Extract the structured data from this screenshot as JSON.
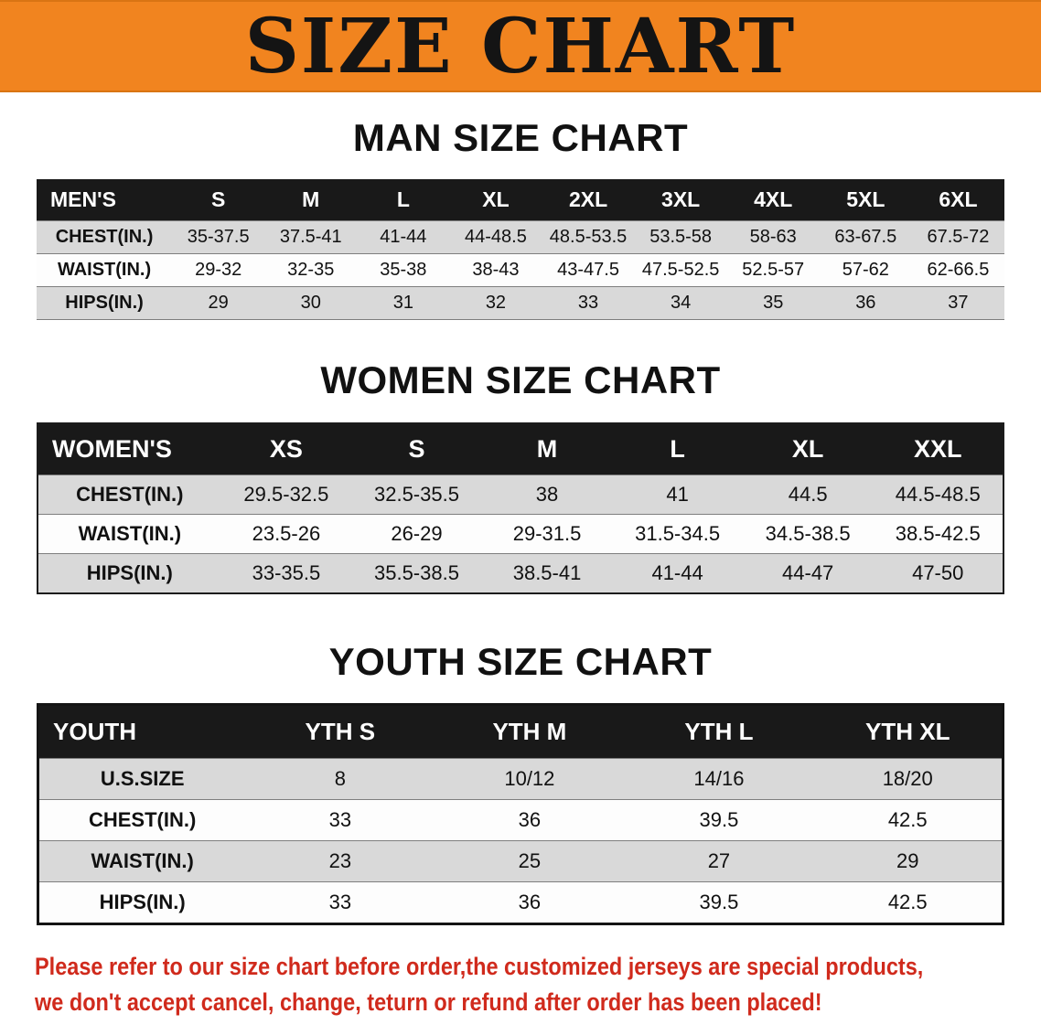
{
  "banner": {
    "title": "SIZE CHART",
    "bg_color": "#f1841f",
    "text_color": "#141414"
  },
  "sections": [
    {
      "id": "men",
      "heading": "MAN SIZE CHART",
      "table": {
        "header": [
          "MEN'S",
          "S",
          "M",
          "L",
          "XL",
          "2XL",
          "3XL",
          "4XL",
          "5XL",
          "6XL"
        ],
        "rows": [
          [
            "CHEST(IN.)",
            "35-37.5",
            "37.5-41",
            "41-44",
            "44-48.5",
            "48.5-53.5",
            "53.5-58",
            "58-63",
            "63-67.5",
            "67.5-72"
          ],
          [
            "WAIST(IN.)",
            "29-32",
            "32-35",
            "35-38",
            "38-43",
            "43-47.5",
            "47.5-52.5",
            "52.5-57",
            "57-62",
            "62-66.5"
          ],
          [
            "HIPS(IN.)",
            "29",
            "30",
            "31",
            "32",
            "33",
            "34",
            "35",
            "36",
            "37"
          ]
        ]
      }
    },
    {
      "id": "women",
      "heading": "WOMEN SIZE CHART",
      "table": {
        "header": [
          "WOMEN'S",
          "XS",
          "S",
          "M",
          "L",
          "XL",
          "XXL"
        ],
        "rows": [
          [
            "CHEST(IN.)",
            "29.5-32.5",
            "32.5-35.5",
            "38",
            "41",
            "44.5",
            "44.5-48.5"
          ],
          [
            "WAIST(IN.)",
            "23.5-26",
            "26-29",
            "29-31.5",
            "31.5-34.5",
            "34.5-38.5",
            "38.5-42.5"
          ],
          [
            "HIPS(IN.)",
            "33-35.5",
            "35.5-38.5",
            "38.5-41",
            "41-44",
            "44-47",
            "47-50"
          ]
        ]
      }
    },
    {
      "id": "youth",
      "heading": "YOUTH SIZE CHART",
      "table": {
        "header": [
          "YOUTH",
          "YTH S",
          "YTH M",
          "YTH L",
          "YTH XL"
        ],
        "rows": [
          [
            "U.S.SIZE",
            "8",
            "10/12",
            "14/16",
            "18/20"
          ],
          [
            "CHEST(IN.)",
            "33",
            "36",
            "39.5",
            "42.5"
          ],
          [
            "WAIST(IN.)",
            "23",
            "25",
            "27",
            "29"
          ],
          [
            "HIPS(IN.)",
            "33",
            "36",
            "39.5",
            "42.5"
          ]
        ]
      }
    }
  ],
  "footer": {
    "line1": "Please refer to our size chart before order,the customized jerseys are special products,",
    "line2": "we don't accept cancel, change, teturn or refund after order has been placed!",
    "text_color": "#d02a1c"
  }
}
